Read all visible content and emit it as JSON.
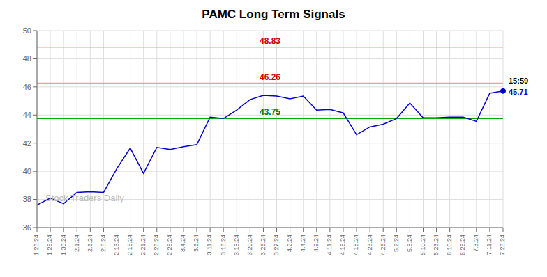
{
  "chart_data": {
    "type": "line",
    "title": "PAMC Long Term Signals",
    "watermark": "Stock Traders Daily",
    "categories": [
      "1.23.24",
      "1.25.24",
      "1.30.24",
      "2.1.24",
      "2.6.24",
      "2.8.24",
      "2.13.24",
      "2.15.24",
      "2.21.24",
      "2.26.24",
      "2.28.24",
      "3.4.24",
      "3.6.24",
      "3.11.24",
      "3.13.24",
      "3.18.24",
      "3.20.24",
      "3.25.24",
      "3.27.24",
      "4.2.24",
      "4.4.24",
      "4.9.24",
      "4.11.24",
      "4.16.24",
      "4.18.24",
      "4.23.24",
      "4.25.24",
      "5.2.24",
      "5.8.24",
      "5.10.24",
      "5.23.24",
      "6.10.24",
      "6.26.24",
      "7.3.24",
      "7.11.24",
      "7.23.24"
    ],
    "values": [
      37.6,
      38.1,
      37.7,
      38.5,
      38.55,
      38.5,
      40.2,
      41.65,
      39.85,
      41.7,
      41.55,
      41.75,
      41.9,
      43.85,
      43.75,
      44.35,
      45.1,
      45.4,
      45.35,
      45.15,
      45.35,
      44.35,
      44.4,
      44.15,
      42.6,
      43.15,
      43.35,
      43.75,
      44.85,
      43.8,
      43.8,
      43.85,
      43.85,
      43.55,
      45.55,
      45.71
    ],
    "color": "#0000cc",
    "ylim": [
      36,
      50
    ],
    "yticks": [
      36,
      38,
      40,
      42,
      44,
      46,
      48,
      50
    ],
    "grid": true,
    "hlines": [
      {
        "value": 43.75,
        "label": "43.75",
        "color": "#00aa00",
        "label_color": "#007700"
      },
      {
        "value": 46.26,
        "label": "46.26",
        "color": "#ff9999",
        "label_color": "#cc0000"
      },
      {
        "value": 48.83,
        "label": "48.83",
        "color": "#ff9999",
        "label_color": "#cc0000"
      }
    ],
    "last_point": {
      "marker": "circle",
      "labels": [
        "15:59",
        "45.71"
      ]
    }
  }
}
